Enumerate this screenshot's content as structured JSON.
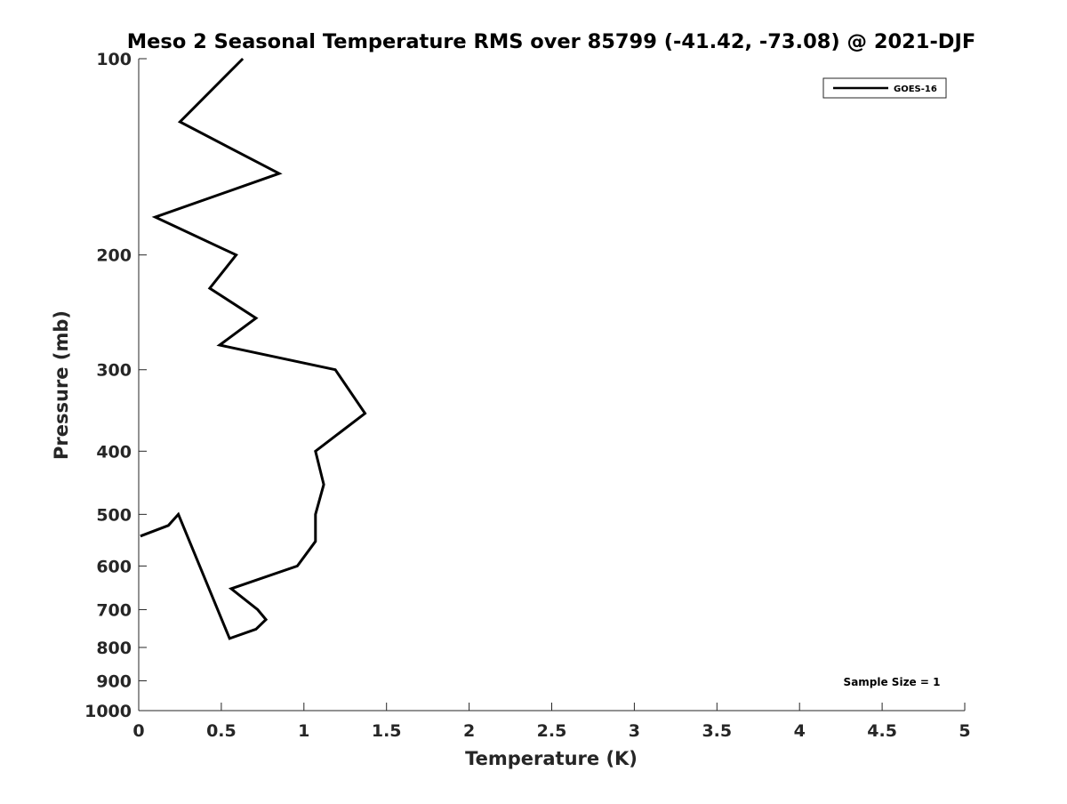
{
  "chart_data": {
    "type": "line",
    "title": "Meso 2 Seasonal Temperature RMS over 85799 (-41.42, -73.08) @ 2021-DJF",
    "xlabel": "Temperature (K)",
    "ylabel": "Pressure (mb)",
    "xlim": [
      0,
      5
    ],
    "ylim": [
      100,
      1000
    ],
    "y_scale": "log",
    "y_reversed": true,
    "x_ticks": [
      0,
      0.5,
      1,
      1.5,
      2,
      2.5,
      3,
      3.5,
      4,
      4.5,
      5
    ],
    "x_tick_labels": [
      "0",
      "0.5",
      "1",
      "1.5",
      "2",
      "2.5",
      "3",
      "3.5",
      "4",
      "4.5",
      "5"
    ],
    "y_ticks": [
      100,
      200,
      300,
      400,
      500,
      600,
      700,
      800,
      900,
      1000
    ],
    "y_tick_labels": [
      "100",
      "200",
      "300",
      "400",
      "500",
      "600",
      "700",
      "800",
      "900",
      "1000"
    ],
    "grid": false,
    "legend_position": "top-right",
    "annotation": "Sample Size = 1",
    "line_color": "#000000",
    "series": [
      {
        "name": "GOES-16",
        "points": [
          {
            "x": 0.63,
            "p": 100
          },
          {
            "x": 0.25,
            "p": 125
          },
          {
            "x": 0.85,
            "p": 150
          },
          {
            "x": 0.1,
            "p": 175
          },
          {
            "x": 0.59,
            "p": 200
          },
          {
            "x": 0.43,
            "p": 225
          },
          {
            "x": 0.71,
            "p": 250
          },
          {
            "x": 0.49,
            "p": 275
          },
          {
            "x": 1.19,
            "p": 300
          },
          {
            "x": 1.37,
            "p": 350
          },
          {
            "x": 1.07,
            "p": 400
          },
          {
            "x": 1.12,
            "p": 450
          },
          {
            "x": 1.07,
            "p": 500
          },
          {
            "x": 1.07,
            "p": 550
          },
          {
            "x": 0.96,
            "p": 600
          },
          {
            "x": 0.56,
            "p": 650
          },
          {
            "x": 0.72,
            "p": 700
          },
          {
            "x": 0.77,
            "p": 725
          },
          {
            "x": 0.71,
            "p": 750
          },
          {
            "x": 0.55,
            "p": 775
          },
          {
            "x": 0.24,
            "p": 500
          },
          {
            "x": 0.18,
            "p": 520
          },
          {
            "x": 0.01,
            "p": 540
          }
        ]
      }
    ]
  }
}
